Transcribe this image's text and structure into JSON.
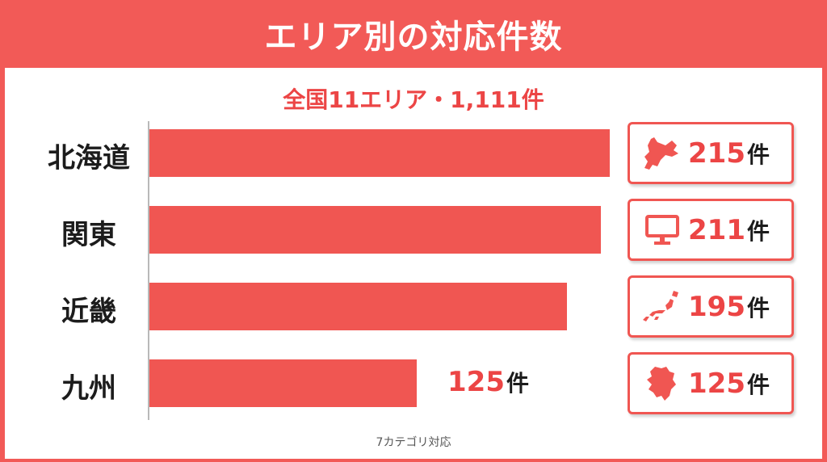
{
  "title": "エリア別の対応件数",
  "subtitle": "全国11エリア・1,111件",
  "footer": "7カテゴリ対応",
  "unit": "件",
  "colors": {
    "accent": "#f05652",
    "text": "#1c1c1c",
    "background": "#ffffff"
  },
  "chart_data": {
    "type": "bar",
    "orientation": "horizontal",
    "categories": [
      "北海道",
      "関東",
      "近畿",
      "九州"
    ],
    "values": [
      215,
      211,
      195,
      125
    ],
    "value_labels": [
      "215",
      "211",
      "195",
      "125"
    ],
    "icons": [
      "hokkaido-map-icon",
      "monitor-icon",
      "japan-map-icon",
      "kyushu-map-icon"
    ],
    "xlim": [
      0,
      225
    ],
    "grid": false
  }
}
